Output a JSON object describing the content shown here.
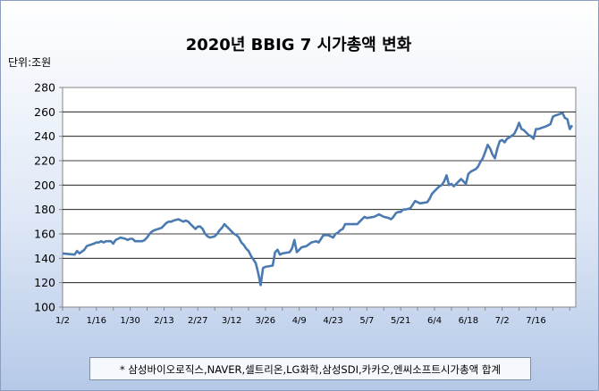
{
  "title": "2020년 BBIG 7 시가총액 변화",
  "unit_label": "단위:조원",
  "footnote": "* 삼성바이오로직스,NAVER,셀트리온,LG화학,삼성SDI,카카오,엔씨소프트시가총액 합계",
  "colors": {
    "line": "#4a7ab0",
    "grid": "#000000",
    "plot_bg": "#ffffff"
  },
  "chart_data": {
    "type": "line",
    "title": "2020년 BBIG 7 시가총액 변화",
    "xlabel": "",
    "ylabel": "단위:조원",
    "ylim": [
      100,
      280
    ],
    "yticks": [
      100,
      120,
      140,
      160,
      180,
      200,
      220,
      240,
      260,
      280
    ],
    "grid": "horizontal",
    "x_labels": [
      "1/2",
      "1/16",
      "1/30",
      "2/13",
      "2/27",
      "3/12",
      "3/26",
      "4/9",
      "4/23",
      "5/7",
      "5/21",
      "6/4",
      "6/18",
      "7/2",
      "7/16"
    ],
    "x_label_day_index": [
      0,
      14,
      28,
      42,
      56,
      70,
      84,
      98,
      112,
      126,
      140,
      154,
      168,
      182,
      196
    ],
    "series": [
      {
        "name": "",
        "points": [
          [
            0,
            144
          ],
          [
            5,
            143
          ],
          [
            6,
            146
          ],
          [
            7,
            144
          ],
          [
            9,
            147
          ],
          [
            10,
            150
          ],
          [
            13,
            152
          ],
          [
            14,
            153
          ],
          [
            15,
            153
          ],
          [
            16,
            154
          ],
          [
            17,
            153
          ],
          [
            18,
            154
          ],
          [
            19,
            154
          ],
          [
            20,
            154
          ],
          [
            21,
            152
          ],
          [
            22,
            155
          ],
          [
            23,
            156
          ],
          [
            24,
            157
          ],
          [
            26,
            156
          ],
          [
            27,
            155
          ],
          [
            28,
            156
          ],
          [
            29,
            156
          ],
          [
            30,
            154
          ],
          [
            33,
            154
          ],
          [
            34,
            155
          ],
          [
            35,
            157
          ],
          [
            36,
            160
          ],
          [
            37,
            162
          ],
          [
            38,
            163
          ],
          [
            41,
            165
          ],
          [
            42,
            167
          ],
          [
            43,
            169
          ],
          [
            44,
            170
          ],
          [
            45,
            170
          ],
          [
            46,
            171
          ],
          [
            48,
            172
          ],
          [
            49,
            171
          ],
          [
            50,
            170
          ],
          [
            51,
            171
          ],
          [
            52,
            170
          ],
          [
            53,
            168
          ],
          [
            54,
            166
          ],
          [
            55,
            164
          ],
          [
            56,
            166
          ],
          [
            57,
            166
          ],
          [
            58,
            164
          ],
          [
            59,
            160
          ],
          [
            60,
            158
          ],
          [
            61,
            157
          ],
          [
            63,
            158
          ],
          [
            64,
            160
          ],
          [
            65,
            163
          ],
          [
            66,
            165
          ],
          [
            67,
            168
          ],
          [
            68,
            166
          ],
          [
            69,
            164
          ],
          [
            70,
            162
          ],
          [
            71,
            160
          ],
          [
            72,
            159
          ],
          [
            73,
            157
          ],
          [
            74,
            153
          ],
          [
            75,
            151
          ],
          [
            76,
            148
          ],
          [
            77,
            146
          ],
          [
            78,
            142
          ],
          [
            79,
            139
          ],
          [
            80,
            136
          ],
          [
            81,
            128
          ],
          [
            82,
            118
          ],
          [
            83,
            132
          ],
          [
            84,
            133
          ],
          [
            87,
            134
          ],
          [
            88,
            145
          ],
          [
            89,
            147
          ],
          [
            90,
            143
          ],
          [
            91,
            144
          ],
          [
            94,
            145
          ],
          [
            95,
            148
          ],
          [
            96,
            155
          ],
          [
            97,
            145
          ],
          [
            98,
            147
          ],
          [
            99,
            149
          ],
          [
            101,
            150
          ],
          [
            103,
            153
          ],
          [
            105,
            154
          ],
          [
            106,
            153
          ],
          [
            107,
            156
          ],
          [
            108,
            159
          ],
          [
            110,
            159
          ],
          [
            112,
            157
          ],
          [
            113,
            160
          ],
          [
            114,
            161
          ],
          [
            115,
            163
          ],
          [
            116,
            164
          ],
          [
            117,
            168
          ],
          [
            119,
            168
          ],
          [
            122,
            168
          ],
          [
            123,
            170
          ],
          [
            124,
            172
          ],
          [
            125,
            174
          ],
          [
            126,
            173
          ],
          [
            129,
            174
          ],
          [
            130,
            175
          ],
          [
            131,
            176
          ],
          [
            132,
            175
          ],
          [
            133,
            174
          ],
          [
            135,
            173
          ],
          [
            136,
            172
          ],
          [
            137,
            174
          ],
          [
            138,
            177
          ],
          [
            139,
            178
          ],
          [
            140,
            178
          ],
          [
            141,
            180
          ],
          [
            142,
            180
          ],
          [
            144,
            181
          ],
          [
            145,
            184
          ],
          [
            146,
            187
          ],
          [
            147,
            186
          ],
          [
            148,
            185
          ],
          [
            151,
            186
          ],
          [
            152,
            189
          ],
          [
            153,
            193
          ],
          [
            154,
            195
          ],
          [
            155,
            197
          ],
          [
            156,
            199
          ],
          [
            157,
            200
          ],
          [
            158,
            203
          ],
          [
            159,
            208
          ],
          [
            160,
            200
          ],
          [
            161,
            201
          ],
          [
            162,
            199
          ],
          [
            163,
            201
          ],
          [
            164,
            203
          ],
          [
            165,
            205
          ],
          [
            166,
            203
          ],
          [
            167,
            201
          ],
          [
            168,
            209
          ],
          [
            169,
            211
          ],
          [
            170,
            212
          ],
          [
            171,
            213
          ],
          [
            172,
            215
          ],
          [
            173,
            219
          ],
          [
            174,
            222
          ],
          [
            175,
            227
          ],
          [
            176,
            233
          ],
          [
            177,
            230
          ],
          [
            178,
            225
          ],
          [
            179,
            222
          ],
          [
            180,
            230
          ],
          [
            181,
            236
          ],
          [
            182,
            237
          ],
          [
            183,
            235
          ],
          [
            184,
            238
          ],
          [
            185,
            239
          ],
          [
            187,
            242
          ],
          [
            188,
            246
          ],
          [
            189,
            251
          ],
          [
            190,
            246
          ],
          [
            191,
            245
          ],
          [
            192,
            243
          ],
          [
            193,
            241
          ],
          [
            194,
            240
          ],
          [
            195,
            238
          ],
          [
            196,
            246
          ],
          [
            197,
            246
          ],
          [
            200,
            248
          ],
          [
            201,
            249
          ],
          [
            202,
            250
          ],
          [
            203,
            256
          ],
          [
            204,
            257
          ],
          [
            207,
            259
          ],
          [
            208,
            255
          ],
          [
            209,
            254
          ],
          [
            210,
            246
          ],
          [
            211,
            249
          ]
        ]
      }
    ]
  }
}
